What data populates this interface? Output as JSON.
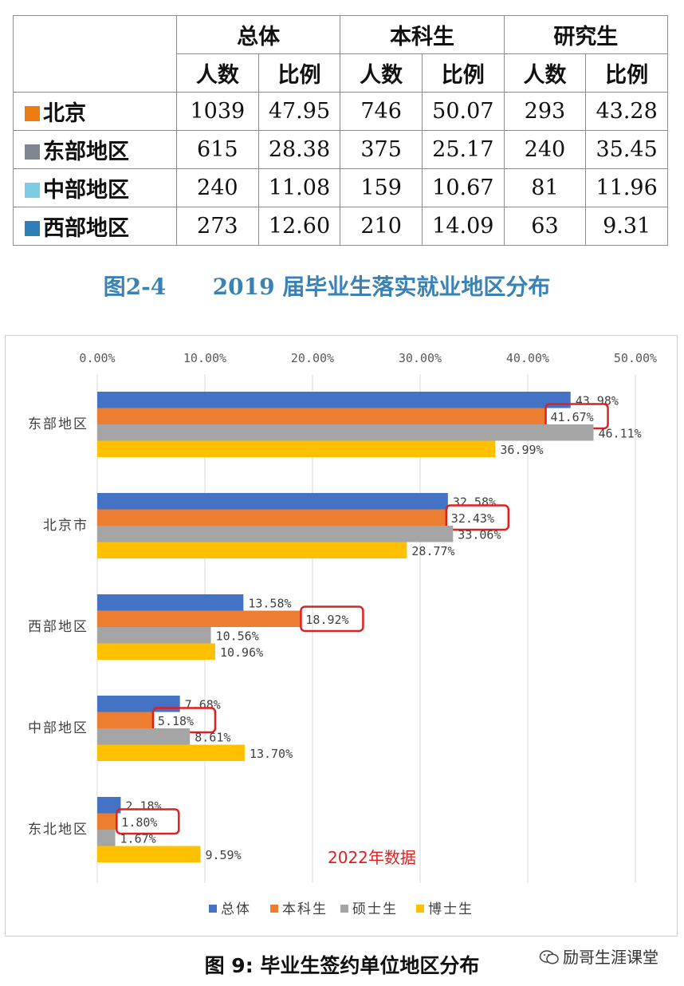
{
  "table": {
    "groups": [
      "总体",
      "本科生",
      "研究生"
    ],
    "subheaders": [
      "人数",
      "比例",
      "人数",
      "比例",
      "人数",
      "比例"
    ],
    "rows": [
      {
        "region": "北京",
        "color": "#ed7d13",
        "values": [
          "1039",
          "47.95",
          "746",
          "50.07",
          "293",
          "43.28"
        ]
      },
      {
        "region": "东部地区",
        "color": "#7f8891",
        "values": [
          "615",
          "28.38",
          "375",
          "25.17",
          "240",
          "35.45"
        ]
      },
      {
        "region": "中部地区",
        "color": "#7ccce5",
        "values": [
          "240",
          "11.08",
          "159",
          "10.67",
          "81",
          "11.96"
        ]
      },
      {
        "region": "西部地区",
        "color": "#2e7fb8",
        "values": [
          "273",
          "12.60",
          "210",
          "14.09",
          "63",
          "9.31"
        ]
      }
    ]
  },
  "figure_2_4_caption": "图2-4      2019 届毕业生落实就业地区分布",
  "chart_data": {
    "type": "bar",
    "orientation": "horizontal",
    "categories": [
      "东部地区",
      "北京市",
      "西部地区",
      "中部地区",
      "东北地区"
    ],
    "series": [
      {
        "name": "总体",
        "color": "#4472c4",
        "values": [
          43.98,
          32.58,
          13.58,
          7.68,
          2.18
        ]
      },
      {
        "name": "本科生",
        "color": "#ed7d31",
        "values": [
          41.67,
          32.43,
          18.92,
          5.18,
          1.8
        ]
      },
      {
        "name": "硕士生",
        "color": "#a5a5a5",
        "values": [
          46.11,
          33.06,
          10.56,
          8.61,
          1.67
        ]
      },
      {
        "name": "博士生",
        "color": "#ffc000",
        "values": [
          36.99,
          28.77,
          10.96,
          13.7,
          9.59
        ]
      }
    ],
    "xlim": [
      0,
      50
    ],
    "x_ticks": [
      "0.00%",
      "10.00%",
      "20.00%",
      "30.00%",
      "40.00%",
      "50.00%"
    ],
    "x_axis_position": "top",
    "grid": true,
    "legend": "bottom",
    "annotation": "2022年数据",
    "annotation_color": "#e02020",
    "highlighted_series": "本科生",
    "highlight_color": "#e02020"
  },
  "figure_9_caption": "图 9: 毕业生签约单位地区分布",
  "watermark": "励哥生涯课堂"
}
